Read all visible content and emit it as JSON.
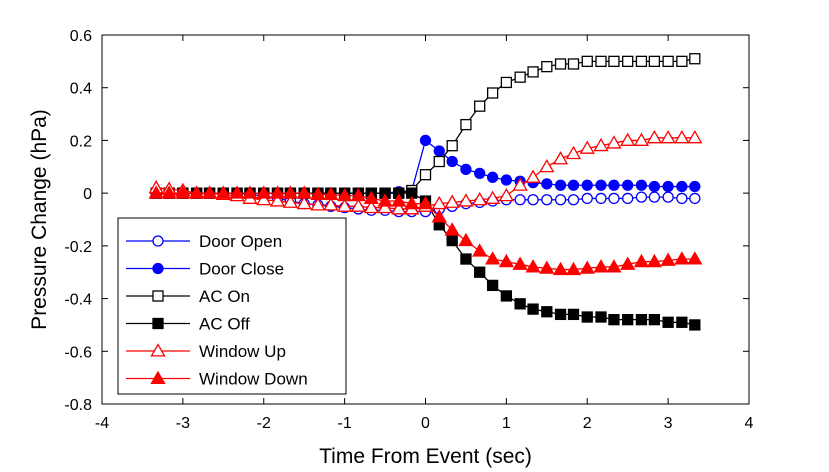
{
  "chart_data": {
    "type": "line",
    "title": "",
    "xlabel": "Time From Event (sec)",
    "ylabel": "Pressure Change (hPa)",
    "xlim": [
      -4,
      4
    ],
    "ylim": [
      -0.8,
      0.6
    ],
    "xticks": [
      -4,
      -3,
      -2,
      -1,
      0,
      1,
      2,
      3,
      4
    ],
    "yticks": [
      -0.8,
      -0.6,
      -0.4,
      -0.2,
      0,
      0.2,
      0.4,
      0.6
    ],
    "xtick_labels": [
      "-4",
      "-3",
      "-2",
      "-1",
      "0",
      "1",
      "2",
      "3",
      "4"
    ],
    "ytick_labels": [
      "-0.8",
      "-0.6",
      "-0.4",
      "-0.2",
      "0",
      "0.2",
      "0.4",
      "0.6"
    ],
    "grid": false,
    "legend_position": "bottom-left",
    "x": [
      -3.33,
      -3.17,
      -3.0,
      -2.83,
      -2.67,
      -2.5,
      -2.33,
      -2.17,
      -2.0,
      -1.83,
      -1.67,
      -1.5,
      -1.33,
      -1.17,
      -1.0,
      -0.83,
      -0.67,
      -0.5,
      -0.33,
      -0.17,
      0.0,
      0.17,
      0.33,
      0.5,
      0.67,
      0.83,
      1.0,
      1.17,
      1.33,
      1.5,
      1.67,
      1.83,
      2.0,
      2.17,
      2.33,
      2.5,
      2.67,
      2.83,
      3.0,
      3.17,
      3.33
    ],
    "series": [
      {
        "name": "Door Open",
        "color": "#0000ff",
        "marker": "circle-open",
        "values": [
          0.0,
          0.0,
          0.0,
          0.0,
          0.0,
          0.0,
          0.0,
          -0.005,
          -0.01,
          -0.02,
          -0.03,
          -0.04,
          -0.045,
          -0.05,
          -0.055,
          -0.06,
          -0.065,
          -0.065,
          -0.07,
          -0.07,
          -0.07,
          -0.06,
          -0.05,
          -0.04,
          -0.035,
          -0.03,
          -0.025,
          -0.025,
          -0.025,
          -0.025,
          -0.025,
          -0.025,
          -0.02,
          -0.02,
          -0.02,
          -0.02,
          -0.015,
          -0.015,
          -0.015,
          -0.02,
          -0.02
        ]
      },
      {
        "name": "Door Close",
        "color": "#0000ff",
        "marker": "circle-filled",
        "values": [
          0.0,
          0.0,
          0.0,
          0.0,
          0.0,
          0.0,
          0.0,
          0.0,
          0.0,
          0.0,
          0.0,
          0.0,
          0.0,
          0.0,
          0.0,
          0.0,
          0.0,
          0.0,
          0.005,
          0.01,
          0.2,
          0.16,
          0.12,
          0.09,
          0.075,
          0.06,
          0.05,
          0.045,
          0.04,
          0.035,
          0.03,
          0.03,
          0.03,
          0.03,
          0.03,
          0.03,
          0.03,
          0.025,
          0.025,
          0.025,
          0.025
        ]
      },
      {
        "name": "AC On",
        "color": "#000000",
        "marker": "square-open",
        "values": [
          0.0,
          0.0,
          0.0,
          0.0,
          0.0,
          0.0,
          0.0,
          0.0,
          0.0,
          0.0,
          0.0,
          0.0,
          0.0,
          0.0,
          0.0,
          0.0,
          0.0,
          0.0,
          0.0,
          0.01,
          0.07,
          0.12,
          0.18,
          0.26,
          0.33,
          0.38,
          0.42,
          0.44,
          0.46,
          0.48,
          0.49,
          0.49,
          0.5,
          0.5,
          0.5,
          0.5,
          0.5,
          0.5,
          0.5,
          0.5,
          0.51
        ]
      },
      {
        "name": "AC Off",
        "color": "#000000",
        "marker": "square-filled",
        "values": [
          0.0,
          0.0,
          0.0,
          0.0,
          0.0,
          0.0,
          0.0,
          0.0,
          0.0,
          0.0,
          0.0,
          0.0,
          0.0,
          0.0,
          0.0,
          0.0,
          0.0,
          0.0,
          0.0,
          0.0,
          -0.03,
          -0.12,
          -0.18,
          -0.25,
          -0.3,
          -0.35,
          -0.39,
          -0.42,
          -0.44,
          -0.45,
          -0.46,
          -0.46,
          -0.47,
          -0.47,
          -0.48,
          -0.48,
          -0.48,
          -0.48,
          -0.49,
          -0.49,
          -0.5
        ]
      },
      {
        "name": "Window Up",
        "color": "#ff0000",
        "marker": "triangle-open",
        "values": [
          0.02,
          0.015,
          0.01,
          0.0,
          0.0,
          -0.005,
          -0.01,
          -0.02,
          -0.025,
          -0.03,
          -0.035,
          -0.04,
          -0.045,
          -0.045,
          -0.05,
          -0.05,
          -0.055,
          -0.055,
          -0.06,
          -0.06,
          -0.05,
          -0.04,
          -0.035,
          -0.03,
          -0.025,
          -0.02,
          -0.01,
          0.03,
          0.06,
          0.1,
          0.13,
          0.15,
          0.17,
          0.18,
          0.19,
          0.2,
          0.2,
          0.21,
          0.21,
          0.21,
          0.21
        ]
      },
      {
        "name": "Window Down",
        "color": "#ff0000",
        "marker": "triangle-filled",
        "values": [
          0.0,
          0.0,
          0.0,
          0.0,
          0.0,
          0.0,
          0.0,
          0.0,
          0.0,
          0.0,
          0.0,
          0.0,
          -0.005,
          -0.005,
          -0.01,
          -0.01,
          -0.02,
          -0.03,
          -0.03,
          -0.04,
          -0.04,
          -0.09,
          -0.14,
          -0.18,
          -0.22,
          -0.25,
          -0.26,
          -0.27,
          -0.28,
          -0.285,
          -0.29,
          -0.29,
          -0.285,
          -0.28,
          -0.28,
          -0.27,
          -0.26,
          -0.26,
          -0.255,
          -0.25,
          -0.25
        ]
      }
    ]
  }
}
